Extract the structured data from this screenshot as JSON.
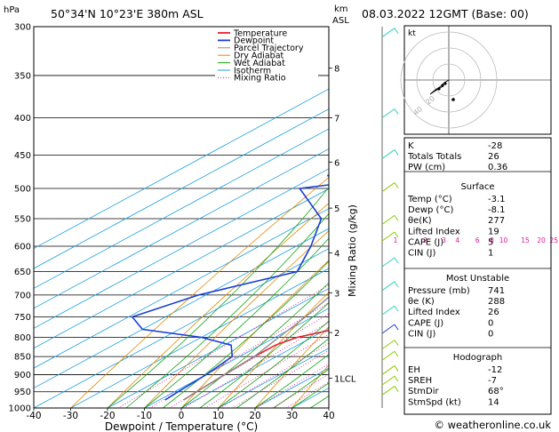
{
  "header": {
    "location": "50°34'N  10°23'E  380m  ASL",
    "date": "08.03.2022  12GMT  (Base: 00)"
  },
  "units": {
    "pressure": "hPa",
    "height_km": "km",
    "asl": "ASL"
  },
  "axis": {
    "xlabel": "Dewpoint / Temperature (°C)",
    "right_label": "Mixing Ratio (g/kg)"
  },
  "legend": [
    "Temperature",
    "Dewpoint",
    "Parcel Trajectory",
    "Dry Adiabat",
    "Wet Adiabat",
    "Isotherm",
    "Mixing Ratio"
  ],
  "colors": {
    "temperature": "#e8232a",
    "dewpoint": "#1a3fd6",
    "parcel": "#8c8c8c",
    "dry_adiabat": "#e08a00",
    "wet_adiabat": "#13a313",
    "isotherm": "#1fa0e0",
    "mixing_ratio": "#e0189a",
    "wind": "#2fd1c0",
    "wind_low": "#88cc00"
  },
  "chart_data": {
    "type": "line",
    "title": "",
    "xlabel": "Dewpoint / Temperature (°C)",
    "ylabel": "hPa",
    "x_ticks": [
      -40,
      -30,
      -20,
      -10,
      0,
      10,
      20,
      30,
      40
    ],
    "p_ticks": [
      300,
      350,
      400,
      450,
      500,
      550,
      600,
      650,
      700,
      750,
      800,
      850,
      900,
      950,
      1000
    ],
    "km_ticks": [
      {
        "label": "8",
        "p": 342
      },
      {
        "label": "7",
        "p": 400
      },
      {
        "label": "6",
        "p": 460
      },
      {
        "label": "5",
        "p": 532
      },
      {
        "label": "4",
        "p": 613
      },
      {
        "label": "3",
        "p": 695
      },
      {
        "label": "2",
        "p": 788
      },
      {
        "label": "1LCL",
        "p": 910
      }
    ],
    "mixing_ratio_labels": [
      "1",
      "2",
      "3",
      "4",
      "6",
      "8",
      "10",
      "15",
      "20",
      "25"
    ],
    "mixing_ratio_values": [
      1,
      2,
      3,
      4,
      6,
      8,
      10,
      15,
      20,
      25
    ],
    "series": [
      {
        "key": "temperature",
        "points": [
          [
            300,
            -48
          ],
          [
            350,
            -41
          ],
          [
            400,
            -34
          ],
          [
            450,
            -28
          ],
          [
            500,
            -21
          ],
          [
            550,
            -16
          ],
          [
            600,
            -10
          ],
          [
            650,
            -6
          ],
          [
            700,
            -2
          ],
          [
            750,
            1
          ],
          [
            780,
            2
          ],
          [
            800,
            -4
          ],
          [
            820,
            -6
          ],
          [
            850,
            -6
          ],
          [
            900,
            -5
          ],
          [
            950,
            -4
          ],
          [
            975,
            -3.4
          ]
        ]
      },
      {
        "key": "dewpoint",
        "points": [
          [
            300,
            -63
          ],
          [
            320,
            -69
          ],
          [
            350,
            -73
          ],
          [
            380,
            -65
          ],
          [
            400,
            -76
          ],
          [
            450,
            -64
          ],
          [
            480,
            -77
          ],
          [
            490,
            -67
          ],
          [
            500,
            -78
          ],
          [
            550,
            -57
          ],
          [
            600,
            -46
          ],
          [
            650,
            -37
          ],
          [
            700,
            -52
          ],
          [
            750,
            -59
          ],
          [
            780,
            -50
          ],
          [
            800,
            -30
          ],
          [
            820,
            -18
          ],
          [
            850,
            -12
          ],
          [
            900,
            -10
          ],
          [
            950,
            -9
          ],
          [
            975,
            -8.4
          ]
        ]
      },
      {
        "key": "parcel",
        "points": [
          [
            300,
            -78
          ],
          [
            350,
            -68
          ],
          [
            400,
            -58
          ],
          [
            450,
            -48
          ],
          [
            500,
            -40
          ],
          [
            550,
            -32
          ],
          [
            600,
            -26
          ],
          [
            650,
            -20
          ],
          [
            700,
            -16
          ],
          [
            750,
            -12
          ],
          [
            800,
            -9
          ],
          [
            850,
            -6
          ],
          [
            900,
            -5
          ],
          [
            950,
            -4
          ],
          [
            975,
            -3.4
          ]
        ]
      }
    ]
  },
  "hodograph": {
    "label": "kt",
    "rings": [
      "20",
      "40"
    ]
  },
  "indices": [
    {
      "label": "K",
      "value": "-28"
    },
    {
      "label": "Totals Totals",
      "value": "26"
    },
    {
      "label": "PW (cm)",
      "value": "0.36"
    }
  ],
  "surface": {
    "title": "Surface",
    "rows": [
      {
        "label": "Temp (°C)",
        "value": "-3.1"
      },
      {
        "label": "Dewp (°C)",
        "value": "-8.1"
      },
      {
        "label": "θe(K)",
        "value": "277"
      },
      {
        "label": "Lifted Index",
        "value": "19"
      },
      {
        "label": "CAPE (J)",
        "value": "5"
      },
      {
        "label": "CIN (J)",
        "value": "1"
      }
    ]
  },
  "most_unstable": {
    "title": "Most Unstable",
    "rows": [
      {
        "label": "Pressure (mb)",
        "value": "741"
      },
      {
        "label": "θe (K)",
        "value": "288"
      },
      {
        "label": "Lifted Index",
        "value": "26"
      },
      {
        "label": "CAPE (J)",
        "value": "0"
      },
      {
        "label": "CIN (J)",
        "value": "0"
      }
    ]
  },
  "hodograph_table": {
    "title": "Hodograph",
    "rows": [
      {
        "label": "EH",
        "value": "-12"
      },
      {
        "label": "SREH",
        "value": "-7"
      },
      {
        "label": "StmDir",
        "value": "68°"
      },
      {
        "label": "StmSpd (kt)",
        "value": "14"
      }
    ]
  },
  "footer": {
    "copyright": "© weatheronline.co.uk"
  }
}
